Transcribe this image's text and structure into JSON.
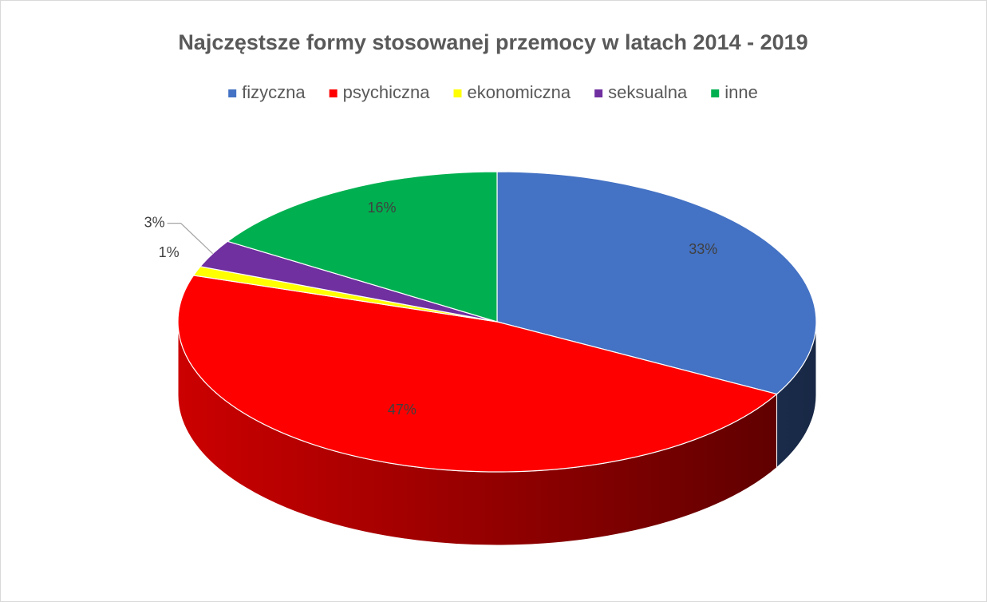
{
  "chart_data": {
    "type": "pie3d",
    "title": "Najczęstsze formy stosowanej przemocy w latach 2014 - 2019",
    "categories": [
      "fizyczna",
      "psychiczna",
      "ekonomiczna",
      "seksualna",
      "inne"
    ],
    "values": [
      33,
      47,
      1,
      3,
      16
    ],
    "value_labels": [
      "33%",
      "47%",
      "1%",
      "3%",
      "16%"
    ],
    "colors": [
      "#4472c4",
      "#ff0000",
      "#ffff00",
      "#7030a0",
      "#00b050"
    ],
    "legend": "top"
  }
}
